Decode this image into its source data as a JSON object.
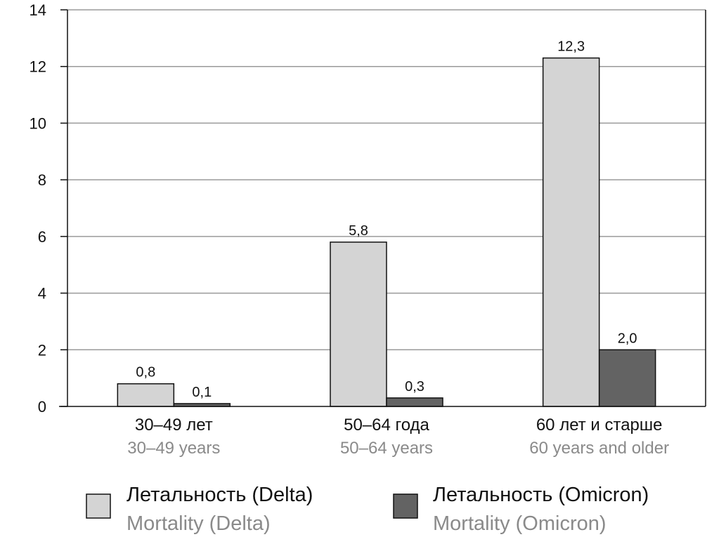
{
  "chart_data": {
    "type": "bar",
    "categories": [
      {
        "label": "30–49 лет",
        "label_en": "30–49 years"
      },
      {
        "label": "50–64 года",
        "label_en": "50–64 years"
      },
      {
        "label": "60 лет и старше",
        "label_en": "60 years and older"
      }
    ],
    "series": [
      {
        "name": "Летальность (Delta)",
        "name_en": "Mortality (Delta)",
        "color": "#d4d4d4",
        "values": [
          0.8,
          5.8,
          12.3
        ],
        "value_labels": [
          "0,8",
          "5,8",
          "12,3"
        ]
      },
      {
        "name": "Летальность (Omicron)",
        "name_en": "Mortality (Omicron)",
        "color": "#636363",
        "values": [
          0.1,
          0.3,
          2.0
        ],
        "value_labels": [
          "0,1",
          "0,3",
          "2,0"
        ]
      }
    ],
    "ylim": [
      0,
      14
    ],
    "yticks": [
      0,
      2,
      4,
      6,
      8,
      10,
      12,
      14
    ],
    "grid": true,
    "legend": "bottom"
  }
}
